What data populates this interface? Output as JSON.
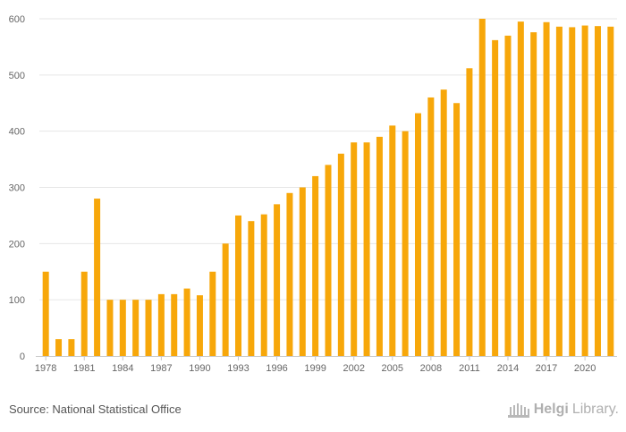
{
  "chart_data": {
    "type": "bar",
    "title": "",
    "xlabel": "",
    "ylabel": "",
    "ylim": [
      0,
      600
    ],
    "yticks": [
      0,
      100,
      200,
      300,
      400,
      500,
      600
    ],
    "xtick_labels": [
      "1978",
      "1981",
      "1984",
      "1987",
      "1990",
      "1993",
      "1996",
      "1999",
      "2002",
      "2005",
      "2008",
      "2011",
      "2014",
      "2017",
      "2020"
    ],
    "categories": [
      "1978",
      "1979",
      "1980",
      "1981",
      "1982",
      "1983",
      "1984",
      "1985",
      "1986",
      "1987",
      "1988",
      "1989",
      "1990",
      "1991",
      "1992",
      "1993",
      "1994",
      "1995",
      "1996",
      "1997",
      "1998",
      "1999",
      "2000",
      "2001",
      "2002",
      "2003",
      "2004",
      "2005",
      "2006",
      "2007",
      "2008",
      "2009",
      "2010",
      "2011",
      "2012",
      "2013",
      "2014",
      "2015",
      "2016",
      "2017",
      "2018",
      "2019",
      "2020",
      "2021",
      "2022"
    ],
    "values": [
      150,
      30,
      30,
      150,
      280,
      100,
      100,
      100,
      100,
      110,
      110,
      120,
      108,
      150,
      200,
      250,
      240,
      252,
      270,
      290,
      300,
      320,
      340,
      360,
      380,
      380,
      390,
      410,
      400,
      432,
      460,
      474,
      450,
      512,
      600,
      562,
      570,
      595,
      576,
      594,
      586,
      585,
      588,
      587,
      586
    ],
    "bar_color": "#f7a70a",
    "grid": true,
    "legend": "none"
  },
  "footer": {
    "source": "Source: National Statistical Office",
    "logo_bold": "Helgi",
    "logo_light": "Library."
  }
}
